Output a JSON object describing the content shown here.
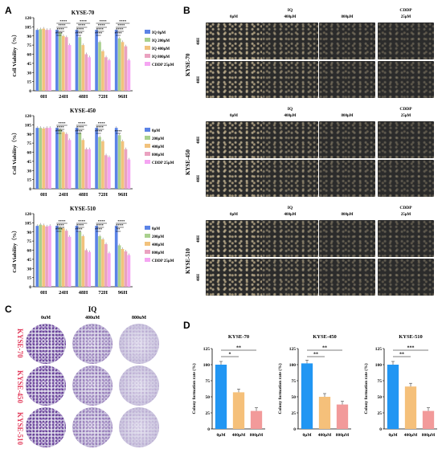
{
  "panels": {
    "A": "A",
    "B": "B",
    "C": "C",
    "D": "D"
  },
  "colors": {
    "c0": "#5b83e6",
    "c1": "#a9d08e",
    "c2": "#f2c27c",
    "c3": "#eaa2c0",
    "c4": "#f5a5f2",
    "d0": "#2196f3",
    "d1": "#f5c07a",
    "d2": "#f29a9a"
  },
  "chart_data": [
    {
      "type": "bar",
      "title": "KYSE-70",
      "ylabel": "Cell Viability（%）",
      "ylim": [
        0,
        120
      ],
      "yticks": [
        "0",
        "15",
        "30",
        "45",
        "60",
        "75",
        "90",
        "105",
        "120"
      ],
      "categories": [
        "0H",
        "24H",
        "48H",
        "72H",
        "96H"
      ],
      "series": [
        {
          "name": "IQ 0μM",
          "values": [
            100,
            100,
            100,
            100,
            100
          ]
        },
        {
          "name": "IQ 200μM",
          "values": [
            101,
            95,
            88,
            80,
            86
          ]
        },
        {
          "name": "IQ 400μM",
          "values": [
            102,
            90,
            75,
            65,
            80
          ]
        },
        {
          "name": "IQ 800μM",
          "values": [
            100,
            88,
            60,
            55,
            73
          ]
        },
        {
          "name": "CDDP 25μM",
          "values": [
            100,
            75,
            55,
            50,
            50
          ]
        }
      ],
      "annotations": [
        "****",
        "****",
        "****",
        "****",
        "****",
        "****",
        "****",
        "****",
        "****",
        "****",
        "****",
        "****",
        "****",
        "****",
        "****",
        "****"
      ]
    },
    {
      "type": "bar",
      "title": "KYSE-450",
      "ylabel": "Cell Viability（%）",
      "ylim": [
        0,
        120
      ],
      "yticks": [
        "0",
        "15",
        "30",
        "45",
        "60",
        "75",
        "90",
        "105",
        "120"
      ],
      "categories": [
        "0H",
        "24H",
        "48H",
        "72H",
        "96H"
      ],
      "series": [
        {
          "name": "0μM",
          "values": [
            100,
            100,
            100,
            100,
            100
          ]
        },
        {
          "name": "200μM",
          "values": [
            100,
            97,
            92,
            85,
            88
          ]
        },
        {
          "name": "400μM",
          "values": [
            99,
            93,
            80,
            78,
            78
          ]
        },
        {
          "name": "800μM",
          "values": [
            100,
            90,
            65,
            55,
            65
          ]
        },
        {
          "name": "CDDP 25μM",
          "values": [
            100,
            80,
            65,
            52,
            48
          ]
        }
      ],
      "annotations": [
        "****",
        "****",
        "****",
        "****",
        "****",
        "****",
        "****",
        "****",
        "****",
        "****"
      ]
    },
    {
      "type": "bar",
      "title": "KYSE-510",
      "ylabel": "Cell Viability（%）",
      "ylim": [
        0,
        120
      ],
      "yticks": [
        "0",
        "15",
        "30",
        "45",
        "60",
        "75",
        "90",
        "105",
        "120"
      ],
      "categories": [
        "0H",
        "24H",
        "48H",
        "72H",
        "96H"
      ],
      "series": [
        {
          "name": "0μM",
          "values": [
            100,
            100,
            100,
            100,
            100
          ]
        },
        {
          "name": "200μM",
          "values": [
            102,
            97,
            90,
            83,
            68
          ]
        },
        {
          "name": "400μM",
          "values": [
            101,
            96,
            83,
            78,
            62
          ]
        },
        {
          "name": "800μM",
          "values": [
            99,
            92,
            60,
            70,
            58
          ]
        },
        {
          "name": "CDDP 25μM",
          "values": [
            100,
            82,
            57,
            55,
            52
          ]
        }
      ],
      "annotations": [
        "****",
        "****",
        "****",
        "****",
        "****",
        "****",
        "****",
        "****",
        "****",
        "**",
        "****",
        "****"
      ]
    },
    {
      "type": "bar",
      "title": "KYSE-70",
      "ylabel": "Colony formation rate (%)",
      "ylim": [
        0,
        125
      ],
      "yticks": [
        "0",
        "25",
        "50",
        "75",
        "100",
        "125"
      ],
      "categories": [
        "0μM",
        "400μM",
        "800μM"
      ],
      "values": [
        100,
        57,
        28
      ],
      "annotations": [
        "*",
        "**"
      ]
    },
    {
      "type": "bar",
      "title": "KYSE-450",
      "ylabel": "Colony formation rate (%)",
      "ylim": [
        0,
        125
      ],
      "yticks": [
        "0",
        "25",
        "50",
        "75",
        "100",
        "125"
      ],
      "categories": [
        "0μM",
        "400μM",
        "800μM"
      ],
      "values": [
        102,
        50,
        38
      ],
      "annotations": [
        "**",
        "**"
      ]
    },
    {
      "type": "bar",
      "title": "KYSE-510",
      "ylabel": "Colony formation rate (%)",
      "ylim": [
        0,
        125
      ],
      "yticks": [
        "0",
        "25",
        "50",
        "75",
        "100",
        "125"
      ],
      "categories": [
        "0μM",
        "400μM",
        "800μM"
      ],
      "values": [
        100,
        66,
        28
      ],
      "annotations": [
        "**",
        "***"
      ]
    }
  ],
  "microscopy": {
    "sections": [
      {
        "name": "KYSE-70",
        "top_headers": [
          "IQ",
          "CDDP"
        ],
        "columns": [
          "0μM",
          "400μM",
          "800μM",
          "25μM"
        ],
        "rows": [
          "48H",
          "48H"
        ]
      },
      {
        "name": "KYSE-450",
        "top_headers": [
          "IQ",
          "CDDP"
        ],
        "columns": [
          "0μM",
          "400μM",
          "800μM",
          "25μM"
        ],
        "rows": [
          "48H",
          "48H"
        ]
      },
      {
        "name": "KYSE-510",
        "top_headers": [
          "IQ",
          "CDDP"
        ],
        "columns": [
          "0μM",
          "400μM",
          "800μM",
          "25μM"
        ],
        "rows": [
          "48H",
          "48H"
        ]
      }
    ]
  },
  "colony": {
    "header": "IQ",
    "columns": [
      "0uM",
      "400uM",
      "800uM"
    ],
    "rows": [
      "KYSE-70",
      "KYSE-450",
      "KYSE-510"
    ]
  }
}
